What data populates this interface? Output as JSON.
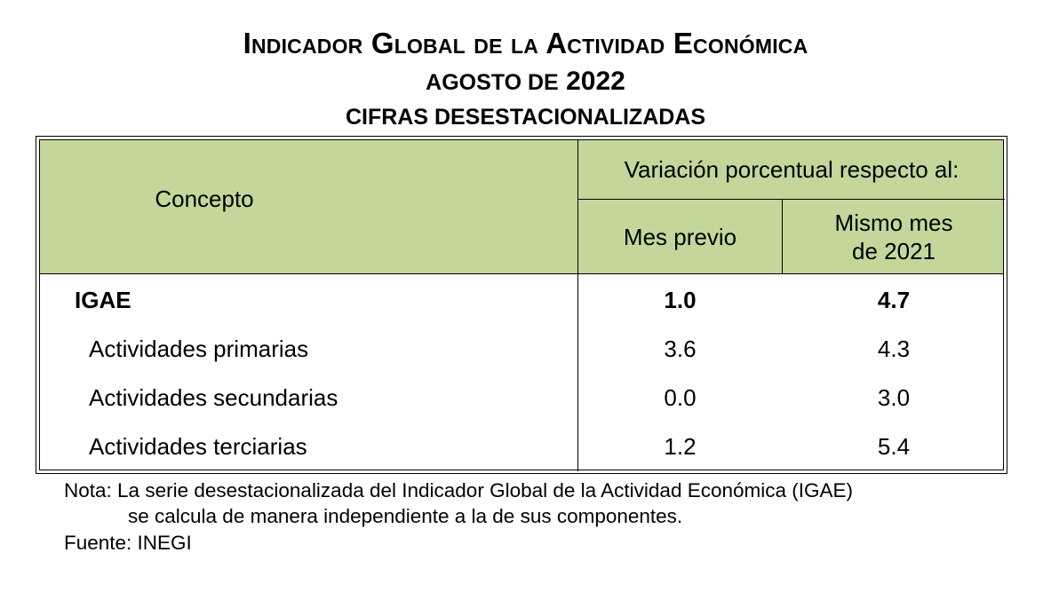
{
  "title": {
    "line1": "Indicador Global de la Actividad Económica",
    "line2_word": "agosto de",
    "line2_year": "2022",
    "line3": "CIFRAS DESESTACIONALIZADAS"
  },
  "table": {
    "concept_header": "Concepto",
    "group_header": "Variación porcentual respecto al:",
    "col1_header": "Mes previo",
    "col2_header_line1": "Mismo mes",
    "col2_header_line2": "de 2021",
    "rows": [
      {
        "label": "IGAE",
        "prev": "1.0",
        "yoy": "4.7"
      },
      {
        "label": "Actividades primarias",
        "prev": "3.6",
        "yoy": "4.3"
      },
      {
        "label": "Actividades secundarias",
        "prev": "0.0",
        "yoy": "3.0"
      },
      {
        "label": "Actividades terciarias",
        "prev": "1.2",
        "yoy": "5.4"
      }
    ]
  },
  "footer": {
    "note_prefix": "Nota:",
    "note_line1": "La serie desestacionalizada del Indicador Global de la Actividad Económica (IGAE)",
    "note_line2": "se calcula de manera independiente a la de sus componentes.",
    "source": "Fuente: INEGI"
  },
  "colors": {
    "header_fill": "#c4d79b"
  }
}
